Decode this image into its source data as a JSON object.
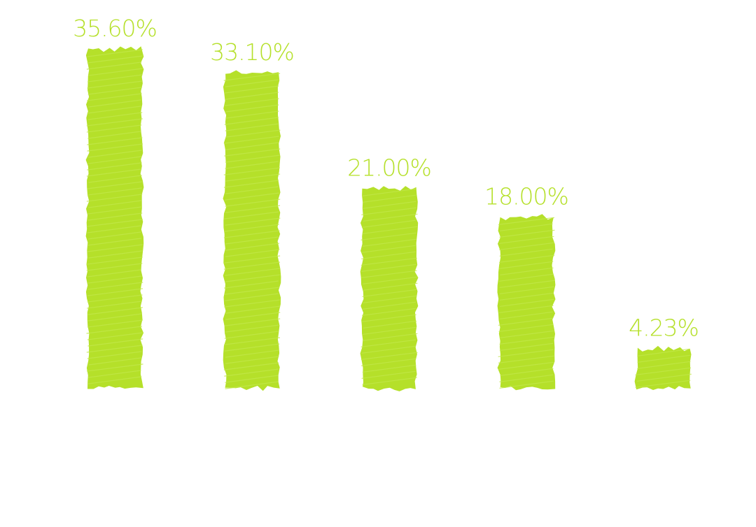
{
  "chart_data": {
    "type": "bar",
    "title": "",
    "xlabel": "",
    "ylabel": "",
    "categories": [
      "",
      "",
      "",
      "",
      ""
    ],
    "values": [
      35.6,
      33.1,
      21.0,
      18.0,
      4.23
    ],
    "data_labels": [
      "35.60%",
      "33.10%",
      "21.00%",
      "18.00%",
      "4.23%"
    ],
    "ylim": [
      0,
      35.6
    ],
    "grid": false,
    "legend": "none",
    "style": "hand-drawn scribble fill"
  },
  "colors": {
    "bar": "#b5e02a",
    "label": "#b5e02a",
    "background": "#ffffff"
  }
}
